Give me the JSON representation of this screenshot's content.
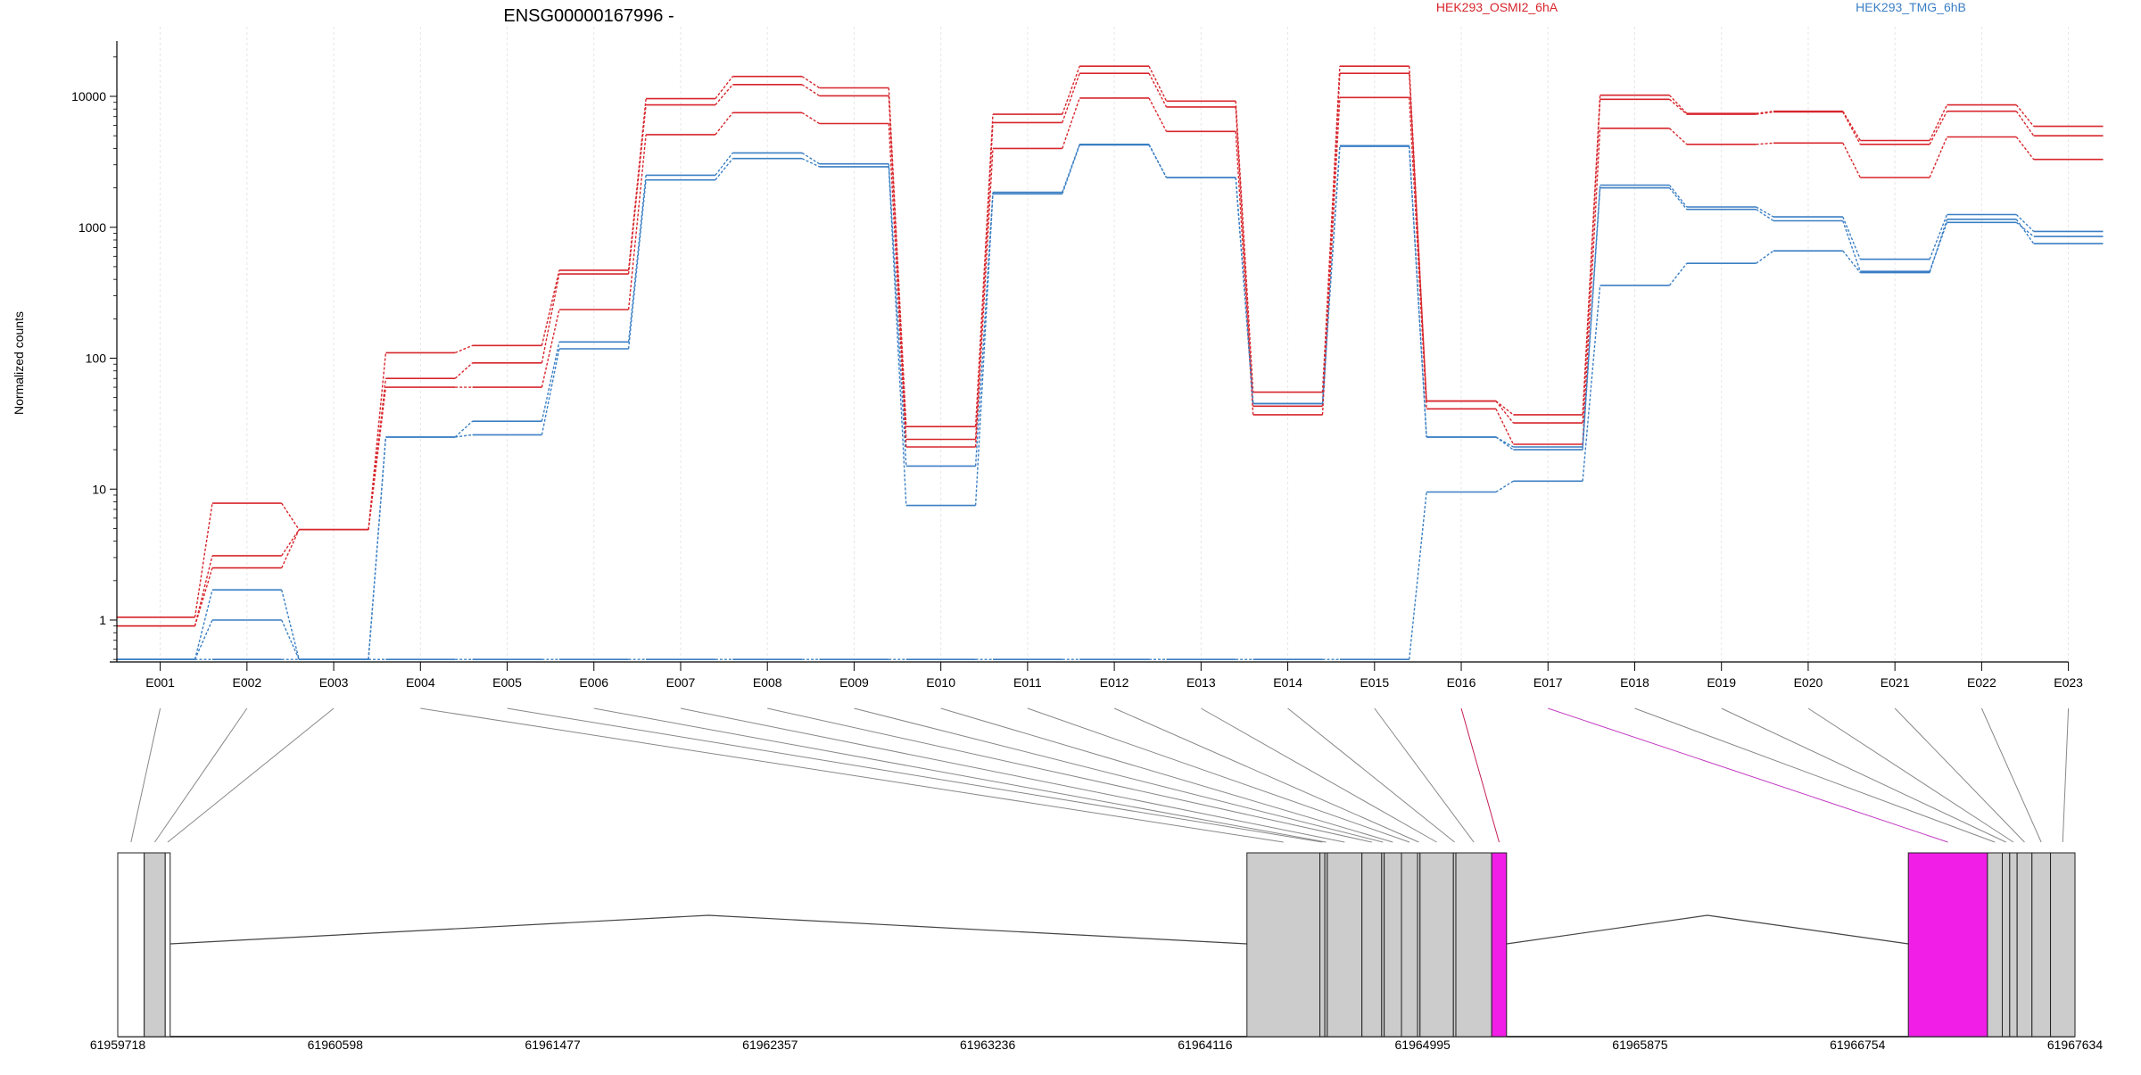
{
  "chart_data": {
    "type": "line",
    "title": "ENSG00000167996 -",
    "ylabel": "Normalized counts",
    "y_scale": "log",
    "y_ticks": [
      1,
      10,
      100,
      1000,
      10000
    ],
    "y_tick_labels": [
      "1",
      "10",
      "100",
      "1000",
      "10000"
    ],
    "grid": "vertical",
    "categories": [
      "E001",
      "E002",
      "E003",
      "E004",
      "E005",
      "E006",
      "E007",
      "E008",
      "E009",
      "E010",
      "E011",
      "E012",
      "E013",
      "E014",
      "E015",
      "E016",
      "E017",
      "E018",
      "E019",
      "E020",
      "E021",
      "E022",
      "E023"
    ],
    "legend": [
      {
        "name": "HEK293_OSMI2_6hA",
        "color": "#d7262c"
      },
      {
        "name": "HEK293_TMG_6hB",
        "color": "#3b7fc4"
      }
    ],
    "series": [
      {
        "group": "HEK293_OSMI2_6hA",
        "color": "#d7262c",
        "values": [
          1.05,
          7.8,
          4.9,
          110,
          125,
          470,
          9600,
          14200,
          11600,
          30,
          7300,
          17000,
          9200,
          55,
          17000,
          47,
          37,
          10200,
          7400,
          7700,
          4600,
          8600,
          5900
        ]
      },
      {
        "group": "HEK293_OSMI2_6hA",
        "color": "#d7262c",
        "values": [
          0.9,
          3.1,
          4.9,
          70,
          92,
          440,
          8600,
          12300,
          10100,
          24,
          6300,
          15000,
          8300,
          43,
          15000,
          47,
          32,
          9500,
          7300,
          7600,
          4300,
          7700,
          5000
        ]
      },
      {
        "group": "HEK293_OSMI2_6hA",
        "color": "#d7262c",
        "values": [
          0.9,
          2.5,
          4.9,
          60,
          60,
          235,
          5100,
          7500,
          6200,
          21,
          4000,
          9700,
          5400,
          37,
          9800,
          41,
          22,
          5700,
          4300,
          4400,
          2400,
          4900,
          3300
        ]
      },
      {
        "group": "HEK293_TMG_6hB",
        "color": "#3b7fc4",
        "values": [
          0.5,
          1.7,
          0.5,
          25,
          33,
          133,
          2500,
          3700,
          3050,
          15,
          1850,
          4300,
          2400,
          45,
          4200,
          25,
          21,
          2100,
          1430,
          1200,
          570,
          1250,
          930
        ]
      },
      {
        "group": "HEK293_TMG_6hB",
        "color": "#3b7fc4",
        "values": [
          0.5,
          1.0,
          0.5,
          25,
          26,
          118,
          2300,
          3350,
          2900,
          7.5,
          1800,
          4250,
          2400,
          45,
          4150,
          25,
          20,
          2000,
          1370,
          1120,
          460,
          1090,
          850
        ]
      },
      {
        "group": "HEK293_TMG_6hB",
        "color": "#3b7fc4",
        "values": [
          0.5,
          0.5,
          0.5,
          0.5,
          0.5,
          0.5,
          0.5,
          0.5,
          0.5,
          0.5,
          0.5,
          0.5,
          0.5,
          0.5,
          0.5,
          9.5,
          11.5,
          360,
          530,
          660,
          450,
          1150,
          750
        ]
      }
    ],
    "gene_model": {
      "coordinate_labels": [
        "61959718",
        "61960598",
        "61961477",
        "61962357",
        "61963236",
        "61964116",
        "61964995",
        "61965875",
        "61966754",
        "61967634"
      ],
      "coordinate_range": [
        61959718,
        61967634
      ],
      "exons": [
        {
          "id": "E001",
          "start": 61959718,
          "end": 61959825,
          "fill": "#ffffff",
          "connector_color": "#888888"
        },
        {
          "id": "E002",
          "start": 61959825,
          "end": 61959910,
          "fill": "#cccccc",
          "connector_color": "#888888"
        },
        {
          "id": "E003",
          "start": 61959910,
          "end": 61959930,
          "fill": "#ffffff",
          "connector_color": "#888888"
        },
        {
          "id": "E004",
          "start": 61964285,
          "end": 61964580,
          "fill": "#cccccc",
          "connector_color": "#888888"
        },
        {
          "id": "E005",
          "start": 61964580,
          "end": 61964600,
          "fill": "#cccccc",
          "connector_color": "#888888"
        },
        {
          "id": "E006",
          "start": 61964600,
          "end": 61964610,
          "fill": "#cccccc",
          "connector_color": "#888888"
        },
        {
          "id": "E007",
          "start": 61964610,
          "end": 61964750,
          "fill": "#cccccc",
          "connector_color": "#888888"
        },
        {
          "id": "E008",
          "start": 61964750,
          "end": 61964830,
          "fill": "#cccccc",
          "connector_color": "#888888"
        },
        {
          "id": "E009",
          "start": 61964830,
          "end": 61964840,
          "fill": "#cccccc",
          "connector_color": "#888888"
        },
        {
          "id": "E010",
          "start": 61964840,
          "end": 61964910,
          "fill": "#cccccc",
          "connector_color": "#888888"
        },
        {
          "id": "E011",
          "start": 61964910,
          "end": 61964975,
          "fill": "#cccccc",
          "connector_color": "#888888"
        },
        {
          "id": "E012",
          "start": 61964975,
          "end": 61964985,
          "fill": "#cccccc",
          "connector_color": "#888888"
        },
        {
          "id": "E013",
          "start": 61964985,
          "end": 61965120,
          "fill": "#cccccc",
          "connector_color": "#888888"
        },
        {
          "id": "E014",
          "start": 61965120,
          "end": 61965130,
          "fill": "#cccccc",
          "connector_color": "#888888"
        },
        {
          "id": "E015",
          "start": 61965130,
          "end": 61965275,
          "fill": "#cccccc",
          "connector_color": "#888888"
        },
        {
          "id": "E016",
          "start": 61965275,
          "end": 61965335,
          "fill": "#f01ee6",
          "connector_color": "#c41e5a"
        },
        {
          "id": "E017",
          "start": 61966960,
          "end": 61967280,
          "fill": "#f01ee6",
          "connector_color": "#c43fc4"
        },
        {
          "id": "E018",
          "start": 61967280,
          "end": 61967340,
          "fill": "#cccccc",
          "connector_color": "#888888"
        },
        {
          "id": "E019",
          "start": 61967340,
          "end": 61967370,
          "fill": "#cccccc",
          "connector_color": "#888888"
        },
        {
          "id": "E020",
          "start": 61967370,
          "end": 61967400,
          "fill": "#cccccc",
          "connector_color": "#888888"
        },
        {
          "id": "E021",
          "start": 61967400,
          "end": 61967460,
          "fill": "#cccccc",
          "connector_color": "#888888"
        },
        {
          "id": "E022",
          "start": 61967460,
          "end": 61967535,
          "fill": "#cccccc",
          "connector_color": "#888888"
        },
        {
          "id": "E023",
          "start": 61967535,
          "end": 61967634,
          "fill": "#cccccc",
          "connector_color": "#888888"
        }
      ],
      "introns": [
        {
          "from": 61959930,
          "to": 61964285
        },
        {
          "from": 61965335,
          "to": 61966960
        }
      ]
    }
  }
}
